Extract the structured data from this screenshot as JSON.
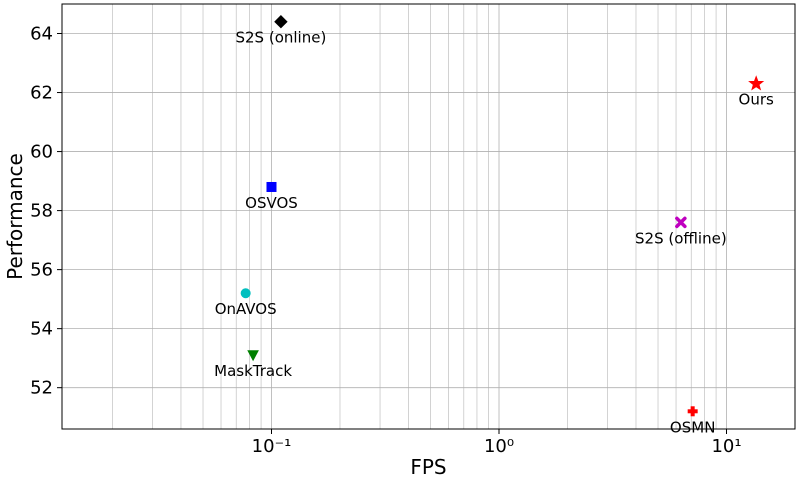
{
  "chart_data": {
    "type": "scatter",
    "title": "",
    "xlabel": "FPS",
    "ylabel": "Performance",
    "xscale": "log",
    "xlim": [
      0.012,
      20
    ],
    "ylim": [
      50.6,
      65.0
    ],
    "grid": "major-and-minor",
    "x_ticks": [
      {
        "value": 0.1,
        "label": "10⁻¹"
      },
      {
        "value": 1,
        "label": "10⁰"
      },
      {
        "value": 10,
        "label": "10¹"
      }
    ],
    "y_ticks": [
      52,
      54,
      56,
      58,
      60,
      62,
      64
    ],
    "points": [
      {
        "name": "S2S (online)",
        "x": 0.11,
        "y": 64.4,
        "marker": "diamond",
        "color": "#000000",
        "label_pos": "below"
      },
      {
        "name": "Ours",
        "x": 13.5,
        "y": 62.3,
        "marker": "star",
        "color": "#ff0000",
        "label_pos": "below"
      },
      {
        "name": "OSVOS",
        "x": 0.1,
        "y": 58.8,
        "marker": "square",
        "color": "#0000ff",
        "label_pos": "below"
      },
      {
        "name": "S2S (offline)",
        "x": 6.3,
        "y": 57.6,
        "marker": "x-filled",
        "color": "#bf00bf",
        "label_pos": "below"
      },
      {
        "name": "OnAVOS",
        "x": 0.077,
        "y": 55.2,
        "marker": "circle",
        "color": "#00bfbf",
        "label_pos": "below"
      },
      {
        "name": "MaskTrack",
        "x": 0.083,
        "y": 53.1,
        "marker": "triangle-down",
        "color": "#008000",
        "label_pos": "below"
      },
      {
        "name": "OSMN",
        "x": 7.1,
        "y": 51.2,
        "marker": "plus-filled",
        "color": "#ff0000",
        "label_pos": "below"
      }
    ]
  }
}
